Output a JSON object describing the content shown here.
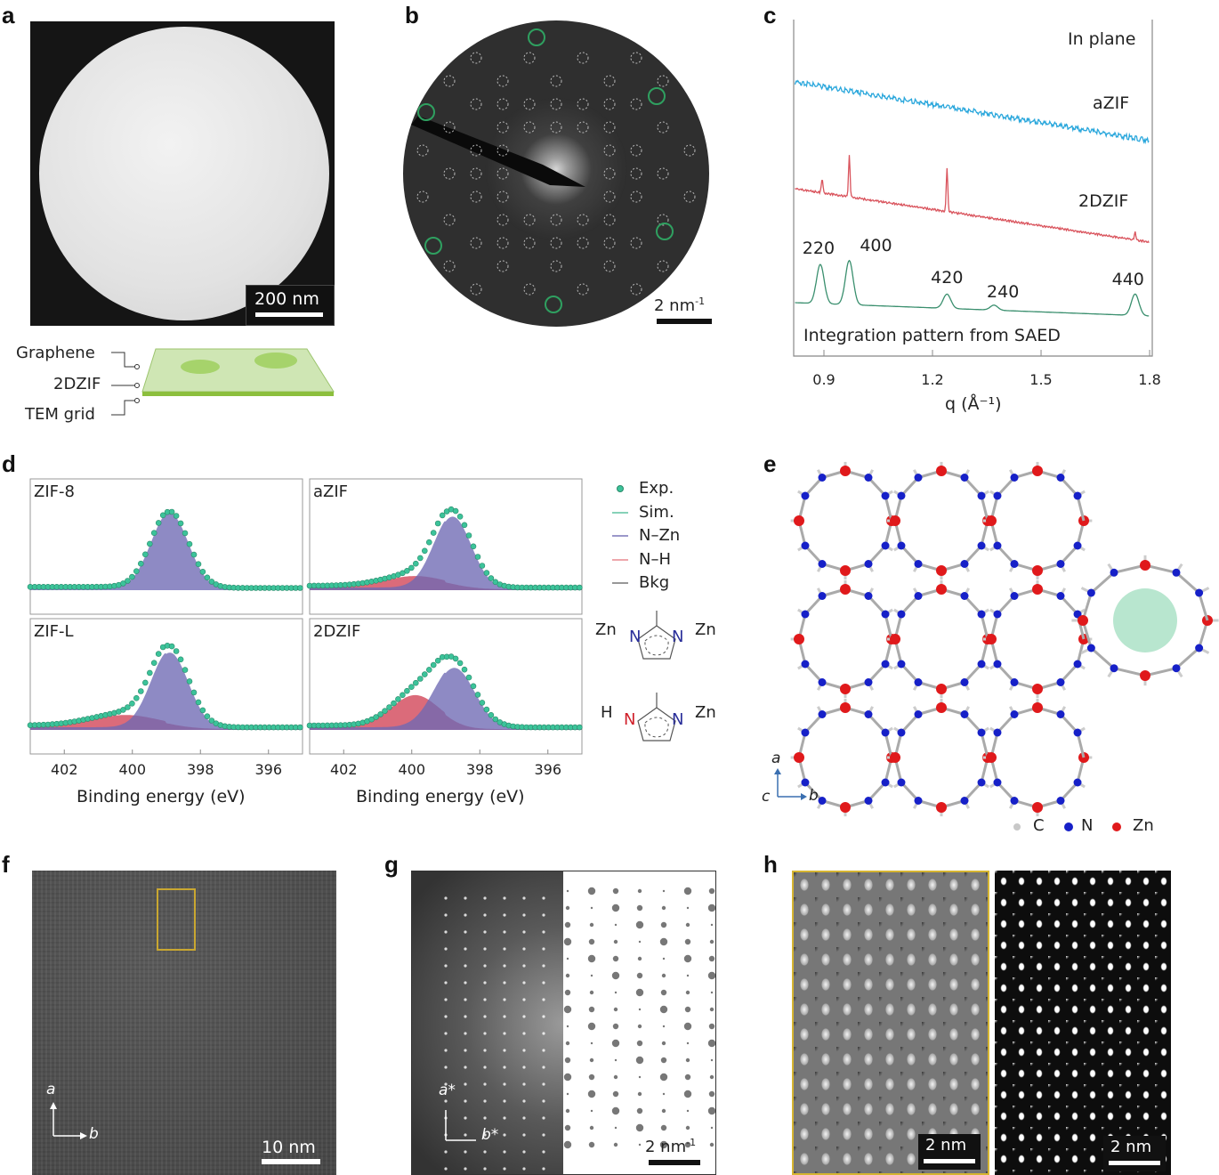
{
  "panels": {
    "a": {
      "label": "a",
      "scale_bar": "200 nm",
      "schematic_labels": [
        "Graphene",
        "2DZIF",
        "TEM grid"
      ]
    },
    "b": {
      "label": "b",
      "scale_bar": "2 nm",
      "scale_sup": "-1"
    },
    "c": {
      "label": "c"
    },
    "d": {
      "label": "d",
      "subpanels": [
        "ZIF-8",
        "aZIF",
        "ZIF-L",
        "2DZIF"
      ],
      "xlabel": "Binding energy (eV)",
      "xticks": [
        "402",
        "400",
        "398",
        "396"
      ],
      "legend": [
        "Exp.",
        "Sim.",
        "N–Zn",
        "N–H",
        "Bkg"
      ],
      "molecule1": {
        "left": "Zn",
        "n1": "N",
        "n2": "N",
        "right": "Zn"
      },
      "molecule2": {
        "left": "H",
        "n1": "N",
        "n2": "N",
        "right": "Zn"
      }
    },
    "e": {
      "label": "e",
      "axes": {
        "a": "a",
        "b": "b",
        "c": "c"
      },
      "legend": [
        "C",
        "N",
        "Zn"
      ]
    },
    "f": {
      "label": "f",
      "scale_bar": "10 nm",
      "axes": {
        "a": "a",
        "b": "b"
      }
    },
    "g": {
      "label": "g",
      "scale_bar": "2 nm",
      "scale_sup": "-1",
      "axes": {
        "a": "a*",
        "b": "b*"
      }
    },
    "h": {
      "label": "h",
      "scale_bar_left": "2 nm",
      "scale_bar_right": "2 nm"
    }
  },
  "colors": {
    "azif": "#2aa7dc",
    "twodzif": "#d9535c",
    "integration": "#3a8f6e",
    "nzn": "#7a76b8",
    "nh": "#cf3a4e",
    "exp": "#3cc39a",
    "zn": "#e0191b",
    "n": "#1620c8",
    "c": "#bdbdbd",
    "highlight": "#d6b531"
  },
  "chart_data": {
    "type": "line",
    "title": "In plane",
    "xlabel": "q (Å⁻¹)",
    "xlim": [
      0.82,
      1.8
    ],
    "xticks": [
      "0.9",
      "1.2",
      "1.5",
      "1.8"
    ],
    "ylabel": "",
    "annotation": "Integration pattern from SAED",
    "series": [
      {
        "name": "aZIF",
        "kind": "amorphous",
        "start": 1.0,
        "end": 0.62
      },
      {
        "name": "2DZIF",
        "kind": "sharp",
        "peaks": [
          0.895,
          0.97,
          1.24,
          1.76
        ],
        "peak_heights": [
          0.15,
          0.42,
          0.45,
          0.08
        ]
      },
      {
        "name": "Integration",
        "kind": "broad",
        "peaks": [
          0.89,
          0.97,
          1.24,
          1.37,
          1.76
        ],
        "peak_heights": [
          0.55,
          0.62,
          0.2,
          0.07,
          0.3
        ]
      }
    ],
    "peak_labels": [
      {
        "q": 0.89,
        "text": "220"
      },
      {
        "q": 0.97,
        "text": "400"
      },
      {
        "q": 1.24,
        "text": "420"
      },
      {
        "q": 1.37,
        "text": "240"
      },
      {
        "q": 1.76,
        "text": "440"
      }
    ]
  },
  "xps_data": {
    "type": "area",
    "xlim": [
      403,
      395
    ],
    "samples": [
      {
        "name": "ZIF-8",
        "nzn": {
          "center": 398.9,
          "height": 1.0,
          "sigma": 0.55
        },
        "nh": null
      },
      {
        "name": "aZIF",
        "nzn": {
          "center": 398.8,
          "height": 0.95,
          "sigma": 0.55
        },
        "nh": {
          "center": 399.9,
          "height": 0.15,
          "sigma": 0.9
        }
      },
      {
        "name": "ZIF-L",
        "nzn": {
          "center": 398.9,
          "height": 1.0,
          "sigma": 0.55
        },
        "nh": {
          "center": 400.2,
          "height": 0.16,
          "sigma": 1.0
        }
      },
      {
        "name": "2DZIF",
        "nzn": {
          "center": 398.75,
          "height": 0.8,
          "sigma": 0.6
        },
        "nh": {
          "center": 399.9,
          "height": 0.42,
          "sigma": 0.7
        }
      }
    ]
  }
}
